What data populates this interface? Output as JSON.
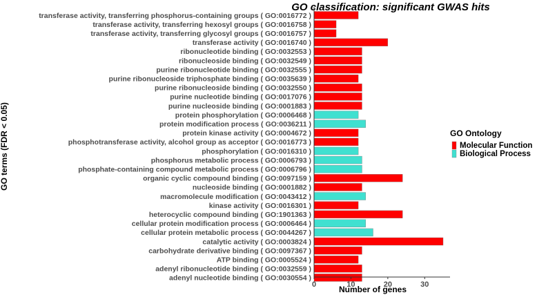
{
  "chart_data": {
    "type": "bar",
    "orientation": "horizontal",
    "title": "GO classification: significant GWAS hits",
    "xlabel": "Number of genes",
    "ylabel": "GO terms (FDR < 0.05)",
    "xlim": [
      0,
      35
    ],
    "xticks": [
      "0",
      "10",
      "20",
      "30"
    ],
    "grid": false,
    "legend": {
      "title": "GO Ontology",
      "position": "right",
      "items": [
        {
          "label": "Molecular Function",
          "color": "#ff0000"
        },
        {
          "label": "Biological Process",
          "color": "#40e0d0"
        }
      ]
    },
    "bars": [
      {
        "label": "transferase activity, transferring phosphorus-containing groups ( GO:0016772 )",
        "value": 12,
        "ontology": "Molecular Function"
      },
      {
        "label": "transferase activity, transferring hexosyl groups ( GO:0016758 )",
        "value": 6,
        "ontology": "Molecular Function"
      },
      {
        "label": "transferase activity, transferring glycosyl groups ( GO:0016757 )",
        "value": 6,
        "ontology": "Molecular Function"
      },
      {
        "label": "transferase activity ( GO:0016740 )",
        "value": 20,
        "ontology": "Molecular Function"
      },
      {
        "label": "ribonucleotide binding ( GO:0032553 )",
        "value": 13,
        "ontology": "Molecular Function"
      },
      {
        "label": "ribonucleoside binding ( GO:0032549 )",
        "value": 13,
        "ontology": "Molecular Function"
      },
      {
        "label": "purine ribonucleotide binding ( GO:0032555 )",
        "value": 13,
        "ontology": "Molecular Function"
      },
      {
        "label": "purine ribonucleoside triphosphate binding ( GO:0035639 )",
        "value": 12,
        "ontology": "Molecular Function"
      },
      {
        "label": "purine ribonucleoside binding ( GO:0032550 )",
        "value": 13,
        "ontology": "Molecular Function"
      },
      {
        "label": "purine nucleotide binding ( GO:0017076 )",
        "value": 13,
        "ontology": "Molecular Function"
      },
      {
        "label": "purine nucleoside binding ( GO:0001883 )",
        "value": 13,
        "ontology": "Molecular Function"
      },
      {
        "label": "protein phosphorylation ( GO:0006468 )",
        "value": 12,
        "ontology": "Biological Process"
      },
      {
        "label": "protein modification process ( GO:0036211 )",
        "value": 14,
        "ontology": "Biological Process"
      },
      {
        "label": "protein kinase activity ( GO:0004672 )",
        "value": 12,
        "ontology": "Molecular Function"
      },
      {
        "label": "phosphotransferase activity, alcohol group as acceptor ( GO:0016773 )",
        "value": 12,
        "ontology": "Molecular Function"
      },
      {
        "label": "phosphorylation ( GO:0016310 )",
        "value": 12,
        "ontology": "Biological Process"
      },
      {
        "label": "phosphorus metabolic process ( GO:0006793 )",
        "value": 13,
        "ontology": "Biological Process"
      },
      {
        "label": "phosphate-containing compound metabolic process ( GO:0006796 )",
        "value": 13,
        "ontology": "Biological Process"
      },
      {
        "label": "organic cyclic compound binding ( GO:0097159 )",
        "value": 24,
        "ontology": "Molecular Function"
      },
      {
        "label": "nucleoside binding ( GO:0001882 )",
        "value": 13,
        "ontology": "Molecular Function"
      },
      {
        "label": "macromolecule modification ( GO:0043412 )",
        "value": 14,
        "ontology": "Biological Process"
      },
      {
        "label": "kinase activity ( GO:0016301 )",
        "value": 12,
        "ontology": "Molecular Function"
      },
      {
        "label": "heterocyclic compound binding ( GO:1901363 )",
        "value": 24,
        "ontology": "Molecular Function"
      },
      {
        "label": "cellular protein modification process ( GO:0006464 )",
        "value": 14,
        "ontology": "Biological Process"
      },
      {
        "label": "cellular protein metabolic process ( GO:0044267 )",
        "value": 16,
        "ontology": "Biological Process"
      },
      {
        "label": "catalytic activity ( GO:0003824 )",
        "value": 35,
        "ontology": "Molecular Function"
      },
      {
        "label": "carbohydrate derivative binding ( GO:0097367 )",
        "value": 13,
        "ontology": "Molecular Function"
      },
      {
        "label": "ATP binding ( GO:0005524 )",
        "value": 12,
        "ontology": "Molecular Function"
      },
      {
        "label": "adenyl ribonucleotide binding ( GO:0032559 )",
        "value": 13,
        "ontology": "Molecular Function"
      },
      {
        "label": "adenyl nucleotide binding ( GO:0030554 )",
        "value": 13,
        "ontology": "Molecular Function"
      }
    ]
  }
}
